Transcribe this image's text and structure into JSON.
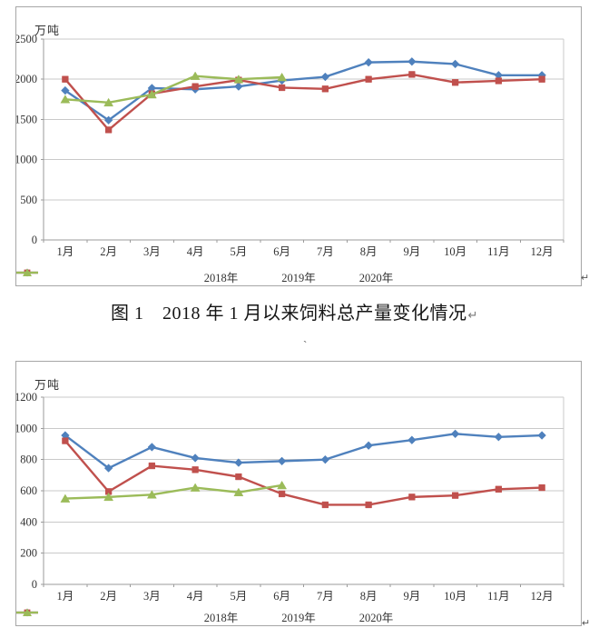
{
  "page": {
    "background": "#ffffff"
  },
  "caption": {
    "text": "图 1　2018 年 1 月以来饲料总产量变化情况",
    "paragraph_mark": "↵"
  },
  "stray_mark": "`",
  "chart_data": [
    {
      "type": "line",
      "unit": "万吨",
      "categories": [
        "1月",
        "2月",
        "3月",
        "4月",
        "5月",
        "6月",
        "7月",
        "8月",
        "9月",
        "10月",
        "11月",
        "12月"
      ],
      "ylim": [
        0,
        2500
      ],
      "ytick_step": 500,
      "ytick_labels": [
        "0",
        "500",
        "1000",
        "1500",
        "2000",
        "2500"
      ],
      "grid": true,
      "legend_position": "bottom",
      "series": [
        {
          "name": "2018年",
          "color": "#4F81BD",
          "marker": "diamond",
          "values": [
            1860,
            1490,
            1890,
            1875,
            1910,
            1985,
            2030,
            2210,
            2220,
            2190,
            2050,
            2050
          ]
        },
        {
          "name": "2019年",
          "color": "#C0504D",
          "marker": "square",
          "values": [
            2000,
            1370,
            1820,
            1910,
            1990,
            1895,
            1880,
            2000,
            2060,
            1960,
            1980,
            2000
          ]
        },
        {
          "name": "2020年",
          "color": "#9BBB59",
          "marker": "triangle",
          "values": [
            1750,
            1710,
            1810,
            2040,
            2000,
            2025
          ]
        }
      ],
      "paragraph_mark": "↵"
    },
    {
      "type": "line",
      "unit": "万吨",
      "categories": [
        "1月",
        "2月",
        "3月",
        "4月",
        "5月",
        "6月",
        "7月",
        "8月",
        "9月",
        "10月",
        "11月",
        "12月"
      ],
      "ylim": [
        0,
        1200
      ],
      "ytick_step": 200,
      "ytick_labels": [
        "0",
        "200",
        "400",
        "600",
        "800",
        "1000",
        "1200"
      ],
      "grid": true,
      "legend_position": "bottom",
      "series": [
        {
          "name": "2018年",
          "color": "#4F81BD",
          "marker": "diamond",
          "values": [
            955,
            745,
            880,
            810,
            780,
            790,
            800,
            890,
            925,
            965,
            945,
            955
          ]
        },
        {
          "name": "2019年",
          "color": "#C0504D",
          "marker": "square",
          "values": [
            920,
            595,
            760,
            735,
            690,
            580,
            510,
            510,
            560,
            570,
            610,
            620
          ]
        },
        {
          "name": "2020年",
          "color": "#9BBB59",
          "marker": "triangle",
          "values": [
            550,
            560,
            575,
            620,
            590,
            635
          ]
        }
      ],
      "paragraph_mark": "↵"
    }
  ],
  "colors": {
    "gridline": "#c9c9c9",
    "axis": "#9b9b9b",
    "chart_border": "#a6a6a6"
  }
}
